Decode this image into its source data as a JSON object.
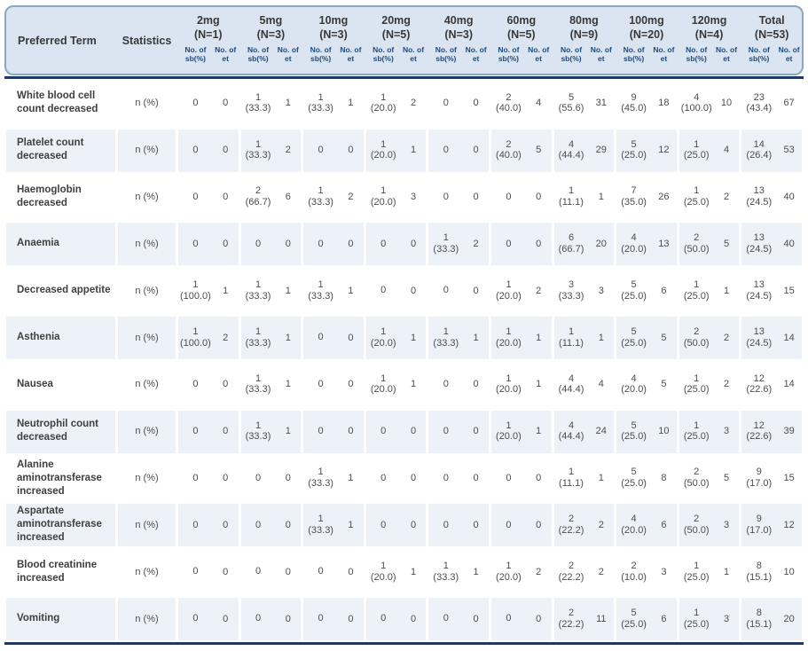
{
  "colors": {
    "header_fill": "#dbe5f1",
    "header_border": "#8ca6c4",
    "row_alt_fill": "#edf2f9",
    "rule_navy": "#1f3864",
    "subheader_text": "#1f497d",
    "term_text": "#404040",
    "data_text": "#4d4d4d"
  },
  "header": {
    "preferred_term_label": "Preferred Term",
    "statistics_label": "Statistics",
    "sub_sb_label": "No. of sb(%)",
    "sub_et_label": "No. of et",
    "groups": [
      {
        "dose": "2mg",
        "n_label": "(N=1)"
      },
      {
        "dose": "5mg",
        "n_label": "(N=3)"
      },
      {
        "dose": "10mg",
        "n_label": "(N=3)"
      },
      {
        "dose": "20mg",
        "n_label": "(N=5)"
      },
      {
        "dose": "40mg",
        "n_label": "(N=3)"
      },
      {
        "dose": "60mg",
        "n_label": "(N=5)"
      },
      {
        "dose": "80mg",
        "n_label": "(N=9)"
      },
      {
        "dose": "100mg",
        "n_label": "(N=20)"
      },
      {
        "dose": "120mg",
        "n_label": "(N=4)"
      },
      {
        "dose": "Total",
        "n_label": "(N=53)"
      }
    ]
  },
  "rows": [
    {
      "term": "White blood cell count decreased",
      "stat": "n (%)",
      "cells": [
        [
          "0",
          "0"
        ],
        [
          "1 (33.3)",
          "1"
        ],
        [
          "1 (33.3)",
          "1"
        ],
        [
          "1 (20.0)",
          "2"
        ],
        [
          "0",
          "0"
        ],
        [
          "2 (40.0)",
          "4"
        ],
        [
          "5 (55.6)",
          "31"
        ],
        [
          "9 (45.0)",
          "18"
        ],
        [
          "4 (100.0)",
          "10"
        ],
        [
          "23 (43.4)",
          "67"
        ]
      ]
    },
    {
      "term": "Platelet count decreased",
      "stat": "n (%)",
      "cells": [
        [
          "0",
          "0"
        ],
        [
          "1 (33.3)",
          "2"
        ],
        [
          "0",
          "0"
        ],
        [
          "1 (20.0)",
          "1"
        ],
        [
          "0",
          "0"
        ],
        [
          "2 (40.0)",
          "5"
        ],
        [
          "4 (44.4)",
          "29"
        ],
        [
          "5 (25.0)",
          "12"
        ],
        [
          "1 (25.0)",
          "4"
        ],
        [
          "14 (26.4)",
          "53"
        ]
      ]
    },
    {
      "term": "Haemoglobin decreased",
      "stat": "n (%)",
      "cells": [
        [
          "0",
          "0"
        ],
        [
          "2 (66.7)",
          "6"
        ],
        [
          "1 (33.3)",
          "2"
        ],
        [
          "1 (20.0)",
          "3"
        ],
        [
          "0",
          "0"
        ],
        [
          "0",
          "0"
        ],
        [
          "1 (11.1)",
          "1"
        ],
        [
          "7 (35.0)",
          "26"
        ],
        [
          "1 (25.0)",
          "2"
        ],
        [
          "13 (24.5)",
          "40"
        ]
      ]
    },
    {
      "term": "Anaemia",
      "stat": "n (%)",
      "cells": [
        [
          "0",
          "0"
        ],
        [
          "0",
          "0"
        ],
        [
          "0",
          "0"
        ],
        [
          "0",
          "0"
        ],
        [
          "1 (33.3)",
          "2"
        ],
        [
          "0",
          "0"
        ],
        [
          "6 (66.7)",
          "20"
        ],
        [
          "4 (20.0)",
          "13"
        ],
        [
          "2 (50.0)",
          "5"
        ],
        [
          "13 (24.5)",
          "40"
        ]
      ]
    },
    {
      "term": "Decreased appetite",
      "stat": "n (%)",
      "cells": [
        [
          "1 (100.0)",
          "1"
        ],
        [
          "1 (33.3)",
          "1"
        ],
        [
          "1 (33.3)",
          "1"
        ],
        [
          "0",
          "0"
        ],
        [
          "0",
          "0"
        ],
        [
          "1 (20.0)",
          "2"
        ],
        [
          "3 (33.3)",
          "3"
        ],
        [
          "5 (25.0)",
          "6"
        ],
        [
          "1 (25.0)",
          "1"
        ],
        [
          "13 (24.5)",
          "15"
        ]
      ]
    },
    {
      "term": "Asthenia",
      "stat": "n (%)",
      "cells": [
        [
          "1 (100.0)",
          "2"
        ],
        [
          "1 (33.3)",
          "1"
        ],
        [
          "0",
          "0"
        ],
        [
          "1 (20.0)",
          "1"
        ],
        [
          "1 (33.3)",
          "1"
        ],
        [
          "1 (20.0)",
          "1"
        ],
        [
          "1 (11.1)",
          "1"
        ],
        [
          "5 (25.0)",
          "5"
        ],
        [
          "2 (50.0)",
          "2"
        ],
        [
          "13 (24.5)",
          "14"
        ]
      ]
    },
    {
      "term": "Nausea",
      "stat": "n (%)",
      "cells": [
        [
          "0",
          "0"
        ],
        [
          "1 (33.3)",
          "1"
        ],
        [
          "0",
          "0"
        ],
        [
          "1 (20.0)",
          "1"
        ],
        [
          "0",
          "0"
        ],
        [
          "1 (20.0)",
          "1"
        ],
        [
          "4 (44.4)",
          "4"
        ],
        [
          "4 (20.0)",
          "5"
        ],
        [
          "1 (25.0)",
          "2"
        ],
        [
          "12 (22.6)",
          "14"
        ]
      ]
    },
    {
      "term": "Neutrophil count decreased",
      "stat": "n (%)",
      "cells": [
        [
          "0",
          "0"
        ],
        [
          "1 (33.3)",
          "1"
        ],
        [
          "0",
          "0"
        ],
        [
          "0",
          "0"
        ],
        [
          "0",
          "0"
        ],
        [
          "1 (20.0)",
          "1"
        ],
        [
          "4 (44.4)",
          "24"
        ],
        [
          "5 (25.0)",
          "10"
        ],
        [
          "1 (25.0)",
          "3"
        ],
        [
          "12 (22.6)",
          "39"
        ]
      ]
    },
    {
      "term": "Alanine aminotransferase increased",
      "stat": "n (%)",
      "cells": [
        [
          "0",
          "0"
        ],
        [
          "0",
          "0"
        ],
        [
          "1 (33.3)",
          "1"
        ],
        [
          "0",
          "0"
        ],
        [
          "0",
          "0"
        ],
        [
          "0",
          "0"
        ],
        [
          "1 (11.1)",
          "1"
        ],
        [
          "5 (25.0)",
          "8"
        ],
        [
          "2 (50.0)",
          "5"
        ],
        [
          "9 (17.0)",
          "15"
        ]
      ]
    },
    {
      "term": "Aspartate aminotransferase increased",
      "stat": "n (%)",
      "cells": [
        [
          "0",
          "0"
        ],
        [
          "0",
          "0"
        ],
        [
          "1 (33.3)",
          "1"
        ],
        [
          "0",
          "0"
        ],
        [
          "0",
          "0"
        ],
        [
          "0",
          "0"
        ],
        [
          "2 (22.2)",
          "2"
        ],
        [
          "4 (20.0)",
          "6"
        ],
        [
          "2 (50.0)",
          "3"
        ],
        [
          "9 (17.0)",
          "12"
        ]
      ]
    },
    {
      "term": "Blood creatinine increased",
      "stat": "n (%)",
      "cells": [
        [
          "0",
          "0"
        ],
        [
          "0",
          "0"
        ],
        [
          "0",
          "0"
        ],
        [
          "1 (20.0)",
          "1"
        ],
        [
          "1 (33.3)",
          "1"
        ],
        [
          "1 (20.0)",
          "2"
        ],
        [
          "2 (22.2)",
          "2"
        ],
        [
          "2 (10.0)",
          "3"
        ],
        [
          "1 (25.0)",
          "1"
        ],
        [
          "8 (15.1)",
          "10"
        ]
      ]
    },
    {
      "term": "Vomiting",
      "stat": "n (%)",
      "cells": [
        [
          "0",
          "0"
        ],
        [
          "0",
          "0"
        ],
        [
          "0",
          "0"
        ],
        [
          "0",
          "0"
        ],
        [
          "0",
          "0"
        ],
        [
          "0",
          "0"
        ],
        [
          "2 (22.2)",
          "11"
        ],
        [
          "5 (25.0)",
          "6"
        ],
        [
          "1 (25.0)",
          "3"
        ],
        [
          "8 (15.1)",
          "20"
        ]
      ]
    }
  ]
}
